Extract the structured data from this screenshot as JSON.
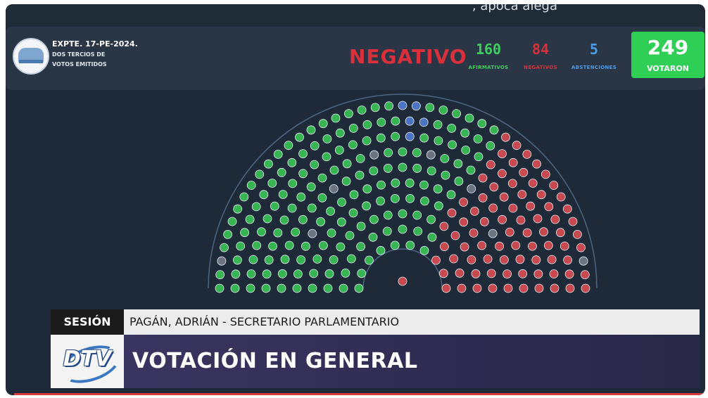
{
  "top_strip": {
    "text": ", apoca alega"
  },
  "header": {
    "expediente": "EXPTE. 17-PE-2024.",
    "subtitle_line1": "DOS TERCIOS DE",
    "subtitle_line2": "VOTOS EMITIDOS",
    "result": "NEGATIVO",
    "result_color": "#d9303b",
    "counts": [
      {
        "value": "160",
        "label": "AFIRMATIVOS",
        "color": "#3ecf5e"
      },
      {
        "value": "84",
        "label": "NEGATIVOS",
        "color": "#d9303b"
      },
      {
        "value": "5",
        "label": "ABSTENCIONES",
        "color": "#4a9be8"
      }
    ],
    "total": {
      "value": "249",
      "label": "VOTARON",
      "color": "#2fcf55"
    }
  },
  "chamber": {
    "afirmativos": 160,
    "negativos": 84,
    "abstenciones": 5,
    "ausentes": 8,
    "colors": {
      "afirmativo": "#36b552",
      "negativo": "#c8494f",
      "abstencion": "#4d74c4",
      "ausente": "#6b7480"
    }
  },
  "lower_third": {
    "tag": "SESIÓN",
    "speaker": "PAGÁN, ADRIÁN - SECRETARIO PARLAMENTARIO",
    "logo_text": "DTV",
    "title": "VOTACIÓN EN GENERAL"
  }
}
